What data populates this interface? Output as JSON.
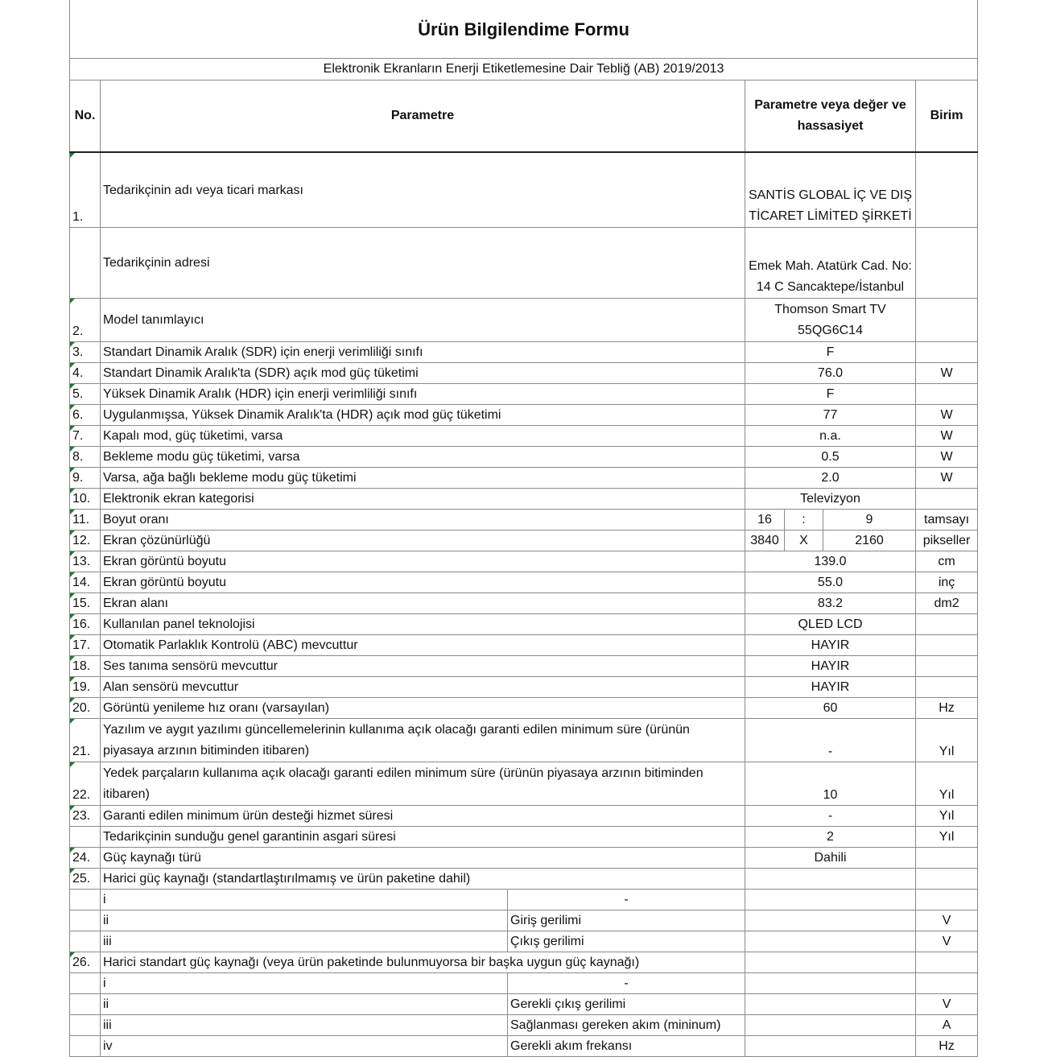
{
  "title": "Ürün Bilgilendime Formu",
  "subtitle": "Elektronik Ekranların Enerji Etiketlemesine Dair Tebliğ (AB) 2019/2013",
  "headers": {
    "no": "No.",
    "param": "Parametre",
    "value": "Parametre veya değer ve hassasiyet",
    "unit": "Birim"
  },
  "rows": [
    {
      "no": "1.",
      "param": "Tedarikçinin adı veya ticari markası",
      "value": "SANTİS GLOBAL İÇ VE DIŞ TİCARET LİMİTED ŞİRKETİ",
      "unit": ""
    },
    {
      "no": "",
      "param": "Tedarikçinin adresi",
      "value": "Emek Mah. Atatürk Cad. No: 14 C Sancaktepe/İstanbul",
      "unit": ""
    },
    {
      "no": "2.",
      "param": "Model tanımlayıcı",
      "value": "Thomson Smart TV 55QG6C14",
      "unit": ""
    },
    {
      "no": "3.",
      "param": "Standart Dinamik Aralık (SDR) için enerji verimliliği sınıfı",
      "value": "F",
      "unit": ""
    },
    {
      "no": "4.",
      "param": "Standart Dinamik Aralık'ta (SDR) açık mod güç tüketimi",
      "value": "76.0",
      "unit": "W"
    },
    {
      "no": "5.",
      "param": "Yüksek Dinamik Aralık (HDR) için enerji verimliliği sınıfı",
      "value": "F",
      "unit": ""
    },
    {
      "no": "6.",
      "param": "Uygulanmışsa, Yüksek Dinamik Aralık'ta (HDR) açık mod güç tüketimi",
      "value": "77",
      "unit": "W"
    },
    {
      "no": "7.",
      "param": "Kapalı mod, güç tüketimi, varsa",
      "value": "n.a.",
      "unit": "W"
    },
    {
      "no": "8.",
      "param": "Bekleme modu güç tüketimi, varsa",
      "value": "0.5",
      "unit": "W"
    },
    {
      "no": "9.",
      "param": "Varsa, ağa bağlı bekleme modu güç tüketimi",
      "value": "2.0",
      "unit": "W"
    },
    {
      "no": "10.",
      "param": "Elektronik ekran kategorisi",
      "value": "Televizyon",
      "unit": ""
    },
    {
      "no": "11.",
      "param": "Boyut oranı",
      "v1": "16",
      "sep": ":",
      "v2": "9",
      "unit": "tamsayı"
    },
    {
      "no": "12.",
      "param": "Ekran çözünürlüğü",
      "v1": "3840",
      "sep": "X",
      "v2": "2160",
      "unit": "pikseller"
    },
    {
      "no": "13.",
      "param": "Ekran görüntü boyutu",
      "value": "139.0",
      "unit": "cm"
    },
    {
      "no": "14.",
      "param": "Ekran görüntü boyutu",
      "value": "55.0",
      "unit": "inç"
    },
    {
      "no": "15.",
      "param": "Ekran alanı",
      "value": "83.2",
      "unit": "dm2"
    },
    {
      "no": "16.",
      "param": "Kullanılan panel teknolojisi",
      "value": "QLED LCD",
      "unit": ""
    },
    {
      "no": "17.",
      "param": "Otomatik Parlaklık Kontrolü (ABC) mevcuttur",
      "value": "HAYIR",
      "unit": ""
    },
    {
      "no": "18.",
      "param": "Ses tanıma sensörü mevcuttur",
      "value": "HAYIR",
      "unit": ""
    },
    {
      "no": "19.",
      "param": "Alan sensörü mevcuttur",
      "value": "HAYIR",
      "unit": ""
    },
    {
      "no": "20.",
      "param": "Görüntü yenileme hız oranı (varsayılan)",
      "value": "60",
      "unit": "Hz"
    },
    {
      "no": "21.",
      "param": "Yazılım ve aygıt yazılımı güncellemelerinin kullanıma açık olacağı garanti edilen minimum süre (ürünün piyasaya arzının bitiminden itibaren)",
      "value": "-",
      "unit": "Yıl"
    },
    {
      "no": "22.",
      "param": "Yedek parçaların kullanıma açık olacağı garanti edilen minimum süre (ürünün piyasaya arzının bitiminden itibaren)",
      "value": "10",
      "unit": "Yıl"
    },
    {
      "no": "23.",
      "param": "Garanti edilen minimum ürün desteği hizmet süresi",
      "value": "-",
      "unit": "Yıl"
    },
    {
      "no": "",
      "param": "Tedarikçinin sunduğu genel garantinin asgari süresi",
      "value": "2",
      "unit": "Yıl"
    },
    {
      "no": "24.",
      "param": "Güç kaynağı türü",
      "value": "Dahili",
      "unit": ""
    },
    {
      "no": "25.",
      "param": "Harici güç kaynağı (standartlaştırılmamış ve ürün paketine dahil)",
      "value": "",
      "unit": ""
    },
    {
      "no": "",
      "sub": "i",
      "subparam": "-",
      "value": "",
      "unit": ""
    },
    {
      "no": "",
      "sub": "ii",
      "subparam": "Giriş gerilimi",
      "value": "",
      "unit": "V"
    },
    {
      "no": "",
      "sub": "iii",
      "subparam": "Çıkış gerilimi",
      "value": "",
      "unit": "V"
    },
    {
      "no": "26.",
      "param": "Harici standart güç kaynağı (veya ürün paketinde bulunmuyorsa bir başka uygun güç kaynağı)",
      "value": "",
      "unit": ""
    },
    {
      "no": "",
      "sub": "i",
      "subparam": "-",
      "value": "",
      "unit": ""
    },
    {
      "no": "",
      "sub": "ii",
      "subparam": "Gerekli çıkış gerilimi",
      "value": "",
      "unit": "V"
    },
    {
      "no": "",
      "sub": "iii",
      "subparam": "Sağlanması gereken akım (mininum)",
      "value": "",
      "unit": "A"
    },
    {
      "no": "",
      "sub": "iv",
      "subparam": "Gerekli akım frekansı",
      "value": "",
      "unit": "Hz"
    }
  ]
}
